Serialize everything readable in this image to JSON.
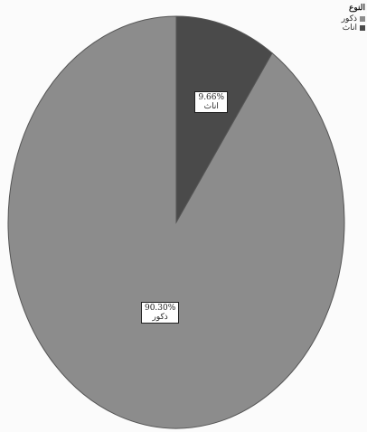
{
  "chart_data": {
    "type": "pie",
    "title": "",
    "legend": {
      "title": "النوع",
      "position": "top-right"
    },
    "slices": [
      {
        "name": "ذكور",
        "value": 90.3,
        "label": "90.30%",
        "color": "#8c8c8c"
      },
      {
        "name": "اناث",
        "value": 9.66,
        "label": "9.66%",
        "color": "#4a4a4a"
      }
    ]
  }
}
